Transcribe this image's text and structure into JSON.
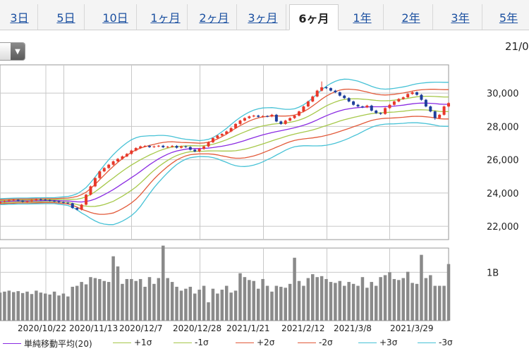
{
  "tabs": [
    {
      "label": "3日",
      "active": false
    },
    {
      "label": "5日",
      "active": false
    },
    {
      "label": "10日",
      "active": false
    },
    {
      "label": "1ヶ月",
      "active": false
    },
    {
      "label": "2ヶ月",
      "active": false
    },
    {
      "label": "3ヶ月",
      "active": false
    },
    {
      "label": "6ヶ月",
      "active": true
    },
    {
      "label": "1年",
      "active": false
    },
    {
      "label": "2年",
      "active": false
    },
    {
      "label": "3年",
      "active": false
    },
    {
      "label": "5年",
      "active": false
    }
  ],
  "top_right_date": "21/0",
  "colors": {
    "up": "#e8382a",
    "down": "#1f3f9c",
    "sma": "#8a2be2",
    "sigma1": "#a6c84a",
    "sigma2": "#e25a3a",
    "sigma3": "#47c2d6",
    "volume": "#8a8a8a",
    "grid": "#c8c8c8"
  },
  "legend": [
    {
      "label": "単純移動平均(20)",
      "color": "#8a2be2"
    },
    {
      "label": "+1σ",
      "color": "#a6c84a"
    },
    {
      "label": "-1σ",
      "color": "#a6c84a"
    },
    {
      "label": "+2σ",
      "color": "#e25a3a"
    },
    {
      "label": "-2σ",
      "color": "#e25a3a"
    },
    {
      "label": "+3σ",
      "color": "#47c2d6"
    },
    {
      "label": "-3σ",
      "color": "#47c2d6"
    }
  ],
  "chart_data": {
    "type": "candlestick",
    "x_tick_labels": [
      "2020/10/22",
      "2020/11/13",
      "2020/12/7",
      "2020/12/28",
      "2021/1/21",
      "2021/2/12",
      "2021/3/8",
      "2021/3/29"
    ],
    "price_ticks": [
      "30,000",
      "28,000",
      "26,000",
      "24,000",
      "22,000"
    ],
    "price_tick_values": [
      30000,
      28000,
      26000,
      24000,
      22000
    ],
    "ylim": [
      21200,
      31700
    ],
    "volume_ticks": [
      "1B"
    ],
    "volume_tick_values": [
      1000000000
    ],
    "volume_ylim": [
      0,
      1500000000
    ],
    "close": [
      23480,
      23520,
      23560,
      23590,
      23540,
      23480,
      23500,
      23560,
      23620,
      23600,
      23580,
      23530,
      23500,
      23450,
      23420,
      23380,
      23100,
      23000,
      23300,
      23900,
      24400,
      24900,
      25300,
      25500,
      25700,
      25900,
      26050,
      26200,
      26350,
      26550,
      26700,
      26800,
      26830,
      26760,
      26800,
      26840,
      26750,
      26780,
      26830,
      26720,
      26800,
      26760,
      26600,
      26500,
      26650,
      26800,
      27050,
      27300,
      27450,
      27550,
      27700,
      27900,
      28150,
      28350,
      28500,
      28600,
      28650,
      28580,
      28620,
      28600,
      28700,
      28300,
      28150,
      28350,
      28500,
      28650,
      28900,
      29200,
      29500,
      29800,
      30150,
      30350,
      30300,
      30150,
      30050,
      29850,
      29700,
      29500,
      29300,
      29200,
      29150,
      29250,
      28950,
      28800,
      28750,
      29100,
      29300,
      29500,
      29650,
      29750,
      29950,
      30050,
      29900,
      29600,
      29200,
      28900,
      28500,
      28700,
      29200,
      29400
    ],
    "open": [
      23380,
      23480,
      23520,
      23560,
      23590,
      23540,
      23480,
      23500,
      23560,
      23620,
      23600,
      23580,
      23530,
      23500,
      23450,
      23420,
      23380,
      23100,
      23000,
      23300,
      23900,
      24400,
      24900,
      25300,
      25500,
      25700,
      25900,
      26050,
      26200,
      26350,
      26550,
      26700,
      26800,
      26830,
      26760,
      26800,
      26840,
      26750,
      26780,
      26830,
      26720,
      26800,
      26760,
      26600,
      26500,
      26650,
      26800,
      27050,
      27300,
      27450,
      27550,
      27700,
      27900,
      28150,
      28350,
      28500,
      28600,
      28650,
      28580,
      28620,
      28600,
      28700,
      28300,
      28150,
      28350,
      28500,
      28650,
      28900,
      29200,
      29500,
      29800,
      30150,
      30350,
      30300,
      30150,
      30050,
      29850,
      29700,
      29500,
      29300,
      29200,
      29150,
      29250,
      28950,
      28800,
      28750,
      29100,
      29300,
      29500,
      29650,
      29750,
      29950,
      30050,
      29900,
      29600,
      29200,
      28900,
      28500,
      28700,
      29200
    ],
    "high": [
      23520,
      23570,
      23610,
      23640,
      23620,
      23580,
      23550,
      23610,
      23670,
      23670,
      23640,
      23620,
      23570,
      23540,
      23490,
      23460,
      23420,
      23150,
      23350,
      23950,
      24450,
      24950,
      25350,
      25550,
      25750,
      25950,
      26100,
      26250,
      26400,
      26600,
      26750,
      26850,
      26880,
      26880,
      26850,
      26890,
      26890,
      26830,
      26880,
      26880,
      26850,
      26850,
      26810,
      26650,
      26700,
      26850,
      27100,
      27350,
      27500,
      27600,
      27750,
      27950,
      28200,
      28400,
      28550,
      28650,
      28700,
      28700,
      28670,
      28670,
      28750,
      28750,
      28350,
      28400,
      28550,
      28700,
      28950,
      29250,
      29550,
      29850,
      30200,
      30700,
      30400,
      30350,
      30200,
      30100,
      29900,
      29750,
      29550,
      29350,
      29250,
      29300,
      29300,
      29000,
      28850,
      29150,
      29350,
      29550,
      29700,
      29800,
      30000,
      30100,
      30100,
      29950,
      29650,
      29250,
      28950,
      28750,
      29250,
      29450
    ],
    "low": [
      23330,
      23430,
      23470,
      23510,
      23490,
      23430,
      23430,
      23450,
      23510,
      23550,
      23530,
      23480,
      23450,
      23400,
      23370,
      23330,
      23050,
      22950,
      22950,
      23250,
      23850,
      24350,
      24850,
      25250,
      25450,
      25650,
      25850,
      26000,
      26150,
      26300,
      26500,
      26650,
      26750,
      26710,
      26710,
      26750,
      26700,
      26700,
      26730,
      26670,
      26670,
      26710,
      26550,
      26450,
      26450,
      26600,
      26750,
      27000,
      27250,
      27400,
      27500,
      27650,
      27850,
      28100,
      28300,
      28450,
      28550,
      28530,
      28530,
      28550,
      28550,
      28250,
      28100,
      28100,
      28300,
      28450,
      28600,
      28850,
      29150,
      29450,
      29750,
      30100,
      30250,
      30100,
      30000,
      29800,
      29650,
      29450,
      29250,
      29150,
      29100,
      29100,
      28900,
      28750,
      28700,
      28700,
      29050,
      29250,
      29450,
      29600,
      29700,
      29900,
      29850,
      29550,
      29150,
      28850,
      28400,
      28450,
      28650,
      29150
    ],
    "sma20": [
      23480,
      23490,
      23500,
      23510,
      23520,
      23520,
      23520,
      23525,
      23530,
      23535,
      23540,
      23540,
      23540,
      23535,
      23530,
      23520,
      23500,
      23470,
      23460,
      23490,
      23550,
      23640,
      23760,
      23900,
      24050,
      24200,
      24380,
      24560,
      24740,
      24920,
      25100,
      25300,
      25500,
      25700,
      25880,
      26050,
      26200,
      26330,
      26440,
      26520,
      26580,
      26630,
      26660,
      26670,
      26670,
      26680,
      26700,
      26730,
      26770,
      26810,
      26860,
      26920,
      26990,
      27070,
      27150,
      27240,
      27330,
      27410,
      27490,
      27560,
      27630,
      27690,
      27740,
      27800,
      27860,
      27920,
      27990,
      28070,
      28160,
      28270,
      28390,
      28520,
      28640,
      28750,
      28850,
      28940,
      29010,
      29060,
      29100,
      29130,
      29150,
      29170,
      29180,
      29180,
      29180,
      29190,
      29200,
      29220,
      29250,
      29280,
      29320,
      29360,
      29390,
      29400,
      29400,
      29390,
      29370,
      29340,
      29330,
      29330
    ],
    "sigma": [
      60,
      60,
      60,
      60,
      60,
      60,
      60,
      60,
      60,
      60,
      60,
      60,
      60,
      70,
      80,
      90,
      120,
      160,
      220,
      280,
      360,
      440,
      520,
      590,
      650,
      700,
      730,
      750,
      760,
      760,
      740,
      700,
      640,
      580,
      520,
      470,
      420,
      370,
      320,
      270,
      230,
      200,
      180,
      170,
      160,
      165,
      175,
      200,
      240,
      290,
      340,
      400,
      450,
      490,
      520,
      540,
      550,
      550,
      540,
      520,
      500,
      470,
      440,
      410,
      390,
      380,
      390,
      410,
      440,
      480,
      520,
      560,
      590,
      610,
      620,
      620,
      610,
      590,
      560,
      530,
      490,
      450,
      410,
      380,
      360,
      350,
      350,
      355,
      360,
      365,
      370,
      380,
      390,
      400,
      410,
      420,
      430,
      440,
      440,
      440
    ],
    "volume": [
      580000000,
      600000000,
      620000000,
      590000000,
      610000000,
      570000000,
      600000000,
      550000000,
      620000000,
      580000000,
      560000000,
      540000000,
      600000000,
      520000000,
      560000000,
      500000000,
      700000000,
      720000000,
      800000000,
      750000000,
      900000000,
      880000000,
      860000000,
      820000000,
      800000000,
      1330000000,
      1120000000,
      760000000,
      860000000,
      860000000,
      820000000,
      860000000,
      700000000,
      900000000,
      760000000,
      880000000,
      1550000000,
      880000000,
      800000000,
      700000000,
      620000000,
      660000000,
      700000000,
      560000000,
      640000000,
      720000000,
      380000000,
      660000000,
      560000000,
      640000000,
      720000000,
      580000000,
      620000000,
      980000000,
      900000000,
      840000000,
      820000000,
      660000000,
      860000000,
      720000000,
      600000000,
      720000000,
      700000000,
      680000000,
      760000000,
      1300000000,
      820000000,
      720000000,
      880000000,
      960000000,
      900000000,
      920000000,
      860000000,
      800000000,
      780000000,
      820000000,
      720000000,
      800000000,
      760000000,
      720000000,
      900000000,
      680000000,
      800000000,
      720000000,
      900000000,
      940000000,
      1000000000,
      860000000,
      840000000,
      880000000,
      1010000000,
      780000000,
      760000000,
      1360000000,
      880000000,
      940000000,
      720000000,
      720000000,
      720000000,
      1170000000
    ]
  }
}
